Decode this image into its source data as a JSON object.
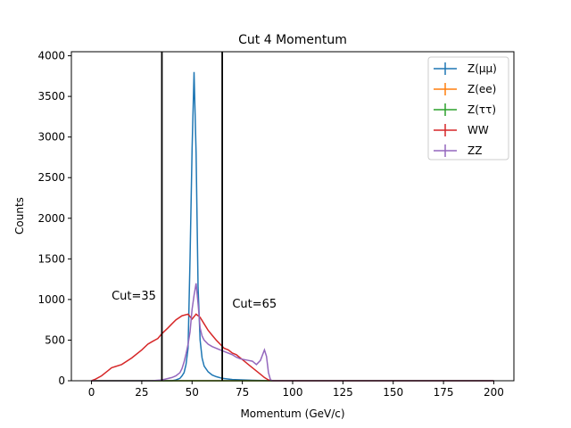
{
  "chart_data": {
    "type": "line",
    "title": "Cut 4 Momentum",
    "xlabel": "Momentum (GeV/c)",
    "ylabel": "Counts",
    "xlim": [
      -10,
      210
    ],
    "ylim": [
      0,
      4050
    ],
    "xticks": [
      0,
      25,
      50,
      75,
      100,
      125,
      150,
      175,
      200
    ],
    "yticks": [
      0,
      500,
      1000,
      1500,
      2000,
      2500,
      3000,
      3500,
      4000
    ],
    "grid": false,
    "legend_position": "top-right",
    "cut_lines": [
      {
        "x": 35,
        "label": "Cut=35",
        "label_x": 10,
        "label_y": 1000
      },
      {
        "x": 65,
        "label": "Cut=65",
        "label_x": 70,
        "label_y": 900
      }
    ],
    "series": [
      {
        "name": "Z(μμ)",
        "color": "#1f77b4",
        "points": [
          [
            0,
            0
          ],
          [
            40,
            0
          ],
          [
            42,
            10
          ],
          [
            44,
            30
          ],
          [
            45,
            60
          ],
          [
            46,
            100
          ],
          [
            47,
            200
          ],
          [
            48,
            400
          ],
          [
            49,
            1500
          ],
          [
            50,
            2850
          ],
          [
            51,
            3800
          ],
          [
            52,
            2800
          ],
          [
            53,
            1150
          ],
          [
            54,
            500
          ],
          [
            55,
            280
          ],
          [
            56,
            180
          ],
          [
            58,
            110
          ],
          [
            60,
            70
          ],
          [
            62,
            50
          ],
          [
            65,
            30
          ],
          [
            70,
            15
          ],
          [
            80,
            5
          ],
          [
            90,
            0
          ],
          [
            200,
            0
          ]
        ]
      },
      {
        "name": "Z(ee)",
        "color": "#ff7f0e",
        "points": [
          [
            0,
            0
          ],
          [
            200,
            0
          ]
        ]
      },
      {
        "name": "Z(ττ)",
        "color": "#2ca02c",
        "points": [
          [
            0,
            0
          ],
          [
            200,
            0
          ]
        ]
      },
      {
        "name": "WW",
        "color": "#d62728",
        "points": [
          [
            0,
            0
          ],
          [
            2,
            20
          ],
          [
            5,
            60
          ],
          [
            8,
            120
          ],
          [
            10,
            160
          ],
          [
            15,
            200
          ],
          [
            20,
            280
          ],
          [
            25,
            380
          ],
          [
            28,
            450
          ],
          [
            30,
            480
          ],
          [
            33,
            520
          ],
          [
            35,
            580
          ],
          [
            38,
            650
          ],
          [
            40,
            700
          ],
          [
            42,
            750
          ],
          [
            45,
            800
          ],
          [
            48,
            820
          ],
          [
            50,
            760
          ],
          [
            52,
            820
          ],
          [
            54,
            780
          ],
          [
            56,
            700
          ],
          [
            58,
            620
          ],
          [
            60,
            560
          ],
          [
            62,
            500
          ],
          [
            64,
            450
          ],
          [
            66,
            400
          ],
          [
            68,
            380
          ],
          [
            70,
            340
          ],
          [
            72,
            320
          ],
          [
            74,
            280
          ],
          [
            76,
            240
          ],
          [
            78,
            200
          ],
          [
            80,
            160
          ],
          [
            82,
            120
          ],
          [
            84,
            80
          ],
          [
            86,
            40
          ],
          [
            88,
            10
          ],
          [
            90,
            0
          ],
          [
            200,
            0
          ]
        ]
      },
      {
        "name": "ZZ",
        "color": "#9467bd",
        "points": [
          [
            0,
            0
          ],
          [
            30,
            0
          ],
          [
            35,
            10
          ],
          [
            40,
            40
          ],
          [
            42,
            60
          ],
          [
            44,
            100
          ],
          [
            45,
            150
          ],
          [
            46,
            230
          ],
          [
            47,
            330
          ],
          [
            48,
            450
          ],
          [
            49,
            600
          ],
          [
            50,
            880
          ],
          [
            51,
            1050
          ],
          [
            52,
            1200
          ],
          [
            53,
            950
          ],
          [
            54,
            650
          ],
          [
            55,
            550
          ],
          [
            56,
            500
          ],
          [
            58,
            450
          ],
          [
            60,
            420
          ],
          [
            62,
            400
          ],
          [
            64,
            380
          ],
          [
            66,
            360
          ],
          [
            68,
            340
          ],
          [
            70,
            320
          ],
          [
            72,
            290
          ],
          [
            74,
            270
          ],
          [
            76,
            260
          ],
          [
            78,
            250
          ],
          [
            80,
            240
          ],
          [
            82,
            200
          ],
          [
            84,
            250
          ],
          [
            86,
            380
          ],
          [
            87,
            300
          ],
          [
            88,
            100
          ],
          [
            89,
            10
          ],
          [
            90,
            0
          ],
          [
            200,
            0
          ]
        ]
      }
    ]
  }
}
